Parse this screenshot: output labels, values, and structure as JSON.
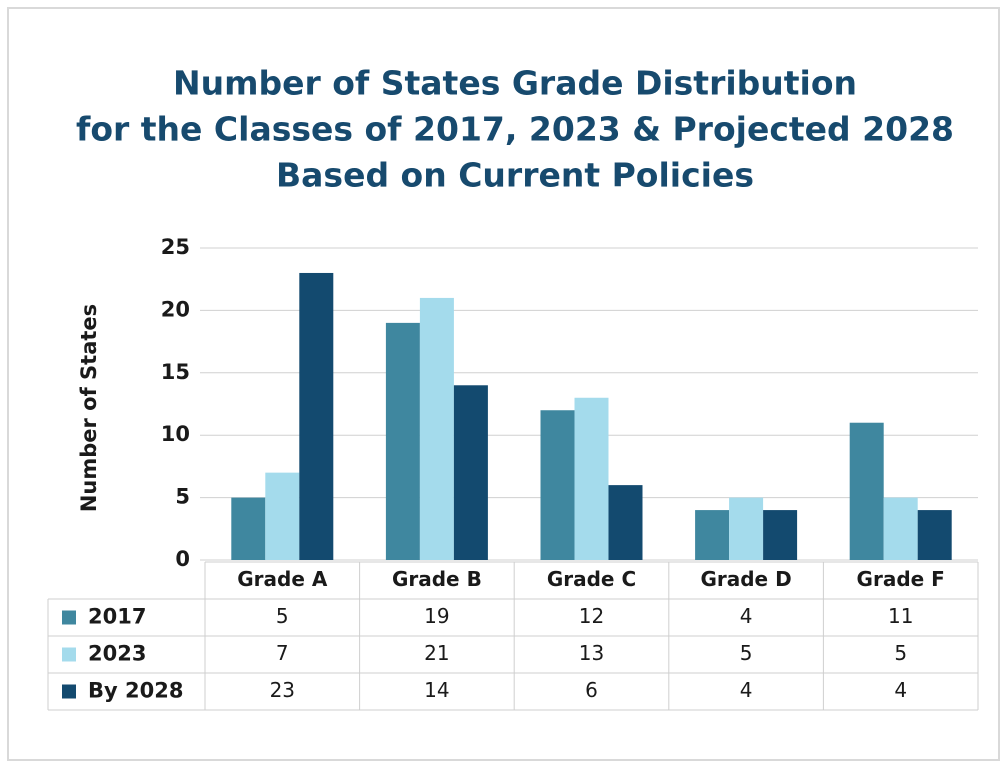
{
  "chart_data": {
    "type": "bar",
    "title": [
      "Number of States Grade Distribution",
      "for the Classes of 2017, 2023 & Projected 2028",
      "Based on Current Policies"
    ],
    "y_label": "Number of States",
    "categories": [
      "Grade A",
      "Grade B",
      "Grade C",
      "Grade D",
      "Grade F"
    ],
    "series": [
      {
        "name": "2017",
        "color": "#3f879f",
        "values": [
          5,
          19,
          12,
          4,
          11
        ]
      },
      {
        "name": "2023",
        "color": "#a4dbec",
        "values": [
          7,
          21,
          13,
          5,
          5
        ]
      },
      {
        "name": "By 2028",
        "color": "#134a6f",
        "values": [
          23,
          14,
          6,
          4,
          4
        ]
      }
    ],
    "ylim": [
      0,
      25
    ],
    "yticks": [
      0,
      5,
      10,
      15,
      20,
      25
    ],
    "grid": true
  }
}
